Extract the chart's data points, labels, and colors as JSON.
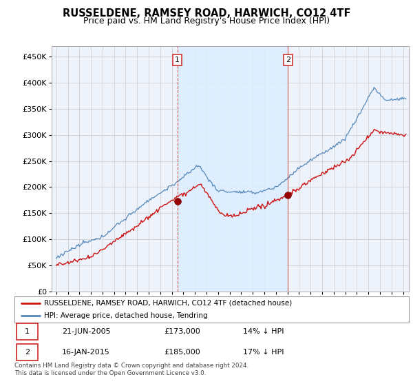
{
  "title": "RUSSELDENE, RAMSEY ROAD, HARWICH, CO12 4TF",
  "subtitle": "Price paid vs. HM Land Registry's House Price Index (HPI)",
  "ylim": [
    0,
    470000
  ],
  "yticks": [
    0,
    50000,
    100000,
    150000,
    200000,
    250000,
    300000,
    350000,
    400000,
    450000
  ],
  "xlim_start": 1994.6,
  "xlim_end": 2025.5,
  "hpi_color": "#5588bb",
  "price_color": "#cc1111",
  "vline_color": "#cc4444",
  "shade_color": "#ddeeff",
  "marker1_x": 2005.47,
  "marker1_y": 173000,
  "marker2_x": 2015.04,
  "marker2_y": 185000,
  "legend_label_price": "RUSSELDENE, RAMSEY ROAD, HARWICH, CO12 4TF (detached house)",
  "legend_label_hpi": "HPI: Average price, detached house, Tendring",
  "table_row1": [
    "1",
    "21-JUN-2005",
    "£173,000",
    "14% ↓ HPI"
  ],
  "table_row2": [
    "2",
    "16-JAN-2015",
    "£185,000",
    "17% ↓ HPI"
  ],
  "footnote": "Contains HM Land Registry data © Crown copyright and database right 2024.\nThis data is licensed under the Open Government Licence v3.0.",
  "background_color": "#ffffff",
  "plot_bg_color": "#eef3fb",
  "grid_color": "#cccccc",
  "title_fontsize": 10.5,
  "subtitle_fontsize": 9
}
